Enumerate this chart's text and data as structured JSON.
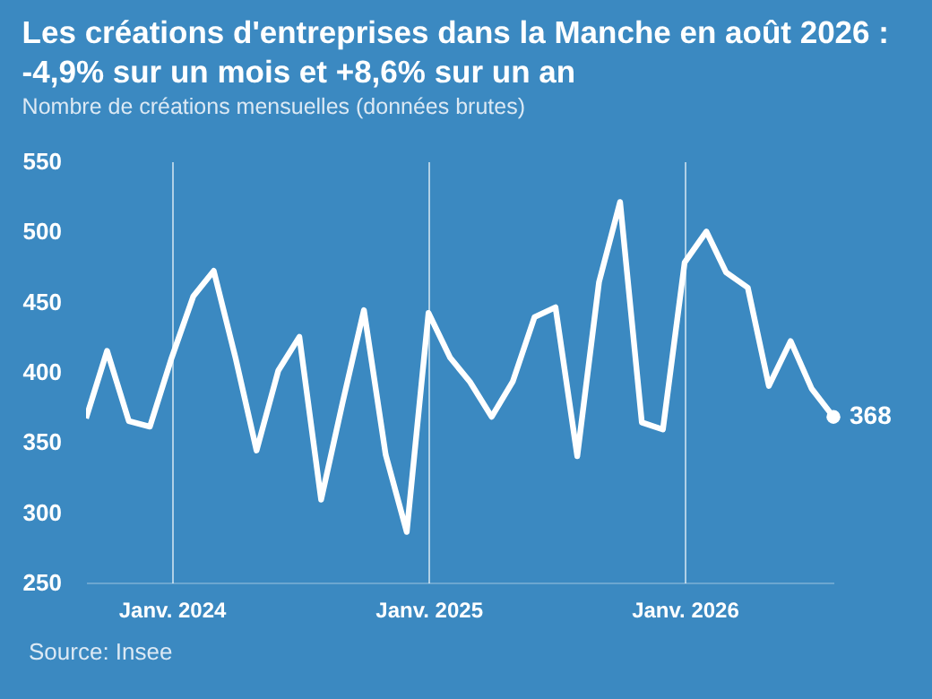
{
  "chart_data": {
    "type": "line",
    "title": "Les créations d'entreprises dans la Manche en août 2026 :\n-4,9% sur un mois et +8,6% sur un an",
    "subtitle": "Nombre de créations mensuelles (données brutes)",
    "x": [
      "2023-09",
      "2023-10",
      "2023-11",
      "2023-12",
      "2024-01",
      "2024-02",
      "2024-03",
      "2024-04",
      "2024-05",
      "2024-06",
      "2024-07",
      "2024-08",
      "2024-09",
      "2024-10",
      "2024-11",
      "2024-12",
      "2025-01",
      "2025-02",
      "2025-03",
      "2025-04",
      "2025-05",
      "2025-06",
      "2025-07",
      "2025-08",
      "2025-09",
      "2025-10",
      "2025-11",
      "2025-12",
      "2026-01",
      "2026-02",
      "2026-03",
      "2026-04",
      "2026-05",
      "2026-06",
      "2026-07",
      "2026-08"
    ],
    "xlim": [
      "2023-09",
      "2026-08"
    ],
    "series": [
      {
        "type": "scatter",
        "marker": "circle",
        "x": [
          "2026-08"
        ],
        "color": "#ffffff",
        "values": [
          368
        ]
      },
      {
        "color": "#ffffff",
        "values": [
          367,
          415,
          365,
          361,
          410,
          454,
          472,
          410,
          344,
          401,
          425,
          309,
          379,
          444,
          341,
          286,
          442,
          410,
          393,
          368,
          393,
          439,
          446,
          340,
          464,
          521,
          364,
          359,
          478,
          500,
          471,
          460,
          390,
          422,
          388,
          368
        ]
      }
    ],
    "xticks": [
      {
        "value": "2024-01",
        "label": "Janv. 2024"
      },
      {
        "value": "2025-01",
        "label": "Janv. 2025"
      },
      {
        "value": "2026-01",
        "label": "Janv. 2026"
      }
    ],
    "ylim": [
      250,
      550
    ],
    "yticks": [
      250,
      300,
      350,
      400,
      450,
      500,
      550
    ],
    "grid": "x",
    "line_style": "solid",
    "annotations": [
      {
        "text": "368",
        "x": "2026-08",
        "y": 368
      },
      "Source: Insee"
    ]
  }
}
